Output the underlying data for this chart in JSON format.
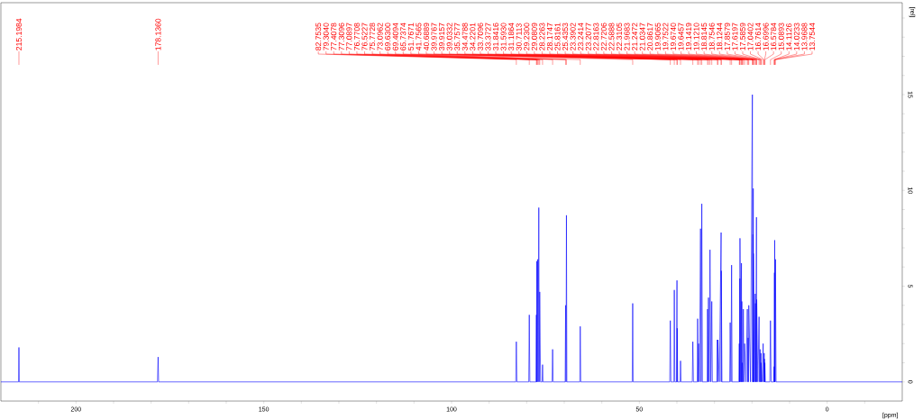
{
  "chart_data": {
    "type": "line",
    "xlabel": "[ppm]",
    "ylabel": "[rel]",
    "xlim": [
      220,
      -20
    ],
    "ylim": [
      -1,
      19.8
    ],
    "xticks": [
      {
        "value": 210,
        "label": null
      },
      200,
      {
        "value": 190,
        "label": null
      },
      {
        "value": 180,
        "label": null
      },
      {
        "value": 170,
        "label": null
      },
      {
        "value": 160,
        "label": null
      },
      150,
      {
        "value": 140,
        "label": null
      },
      {
        "value": 130,
        "label": null
      },
      {
        "value": 120,
        "label": null
      },
      {
        "value": 110,
        "label": null
      },
      100,
      {
        "value": 90,
        "label": null
      },
      {
        "value": 80,
        "label": null
      },
      {
        "value": 70,
        "label": null
      },
      {
        "value": 60,
        "label": null
      },
      50,
      {
        "value": 40,
        "label": null
      },
      {
        "value": 30,
        "label": null
      },
      {
        "value": 20,
        "label": null
      },
      {
        "value": 10,
        "label": null
      },
      0,
      {
        "value": -10,
        "label": null
      }
    ],
    "yticks": [
      0,
      {
        "value": 1,
        "label": null
      },
      {
        "value": 2,
        "label": null
      },
      {
        "value": 3,
        "label": null
      },
      {
        "value": 4,
        "label": null
      },
      5,
      {
        "value": 6,
        "label": null
      },
      {
        "value": 7,
        "label": null
      },
      {
        "value": 8,
        "label": null
      },
      {
        "value": 9,
        "label": null
      },
      10,
      {
        "value": 11,
        "label": null
      },
      {
        "value": 12,
        "label": null
      },
      {
        "value": 13,
        "label": null
      },
      {
        "value": 14,
        "label": null
      },
      15,
      {
        "value": 16,
        "label": null
      },
      {
        "value": 17,
        "label": null
      },
      {
        "value": 18,
        "label": null
      },
      {
        "value": 19,
        "label": null
      }
    ],
    "x": [
      220,
      215.3,
      215.1984,
      215.1,
      178.3,
      178.136,
      178.0,
      82.9,
      82.7535,
      82.6,
      79.45,
      79.304,
      79.15,
      77.5,
      77.4078,
      77.36,
      77.3096,
      77.2,
      77.0897,
      76.93,
      76.7708,
      76.65,
      76.5227,
      76.3,
      75.9,
      75.7728,
      75.65,
      73.25,
      73.0962,
      72.95,
      69.75,
      69.63,
      69.52,
      69.4094,
      69.3,
      65.85,
      65.7374,
      65.6,
      51.9,
      51.7671,
      51.65,
      41.9,
      41.7565,
      41.6,
      40.8,
      40.6889,
      40.55,
      40.1,
      39.9767,
      39.95,
      39.9157,
      39.8,
      39.15,
      39.0332,
      38.9,
      35.9,
      35.7577,
      35.6,
      34.6,
      34.4788,
      34.35,
      34.2201,
      34.0,
      33.7096,
      33.54,
      33.3727,
      33.2,
      31.95,
      31.8416,
      31.72,
      31.593,
      31.39,
      31.1864,
      30.95,
      30.7113,
      30.55,
      29.35,
      29.23,
      29.16,
      29.0809,
      28.7,
      28.2263,
      28.2,
      28.1747,
      28.0,
      25.95,
      25.8161,
      25.6,
      25.4353,
      25.3,
      23.5,
      23.3902,
      23.32,
      23.2414,
      23.225,
      23.2077,
      23.0,
      22.8163,
      22.77,
      22.7206,
      22.65,
      22.5888,
      22.45,
      22.3105,
      22.14,
      21.9683,
      21.6,
      21.2472,
      21.14,
      21.0347,
      20.95,
      20.8617,
      20.4,
      19.9065,
      19.83,
      19.7522,
      19.71,
      19.674,
      19.66,
      19.6457,
      19.4,
      19.1419,
      19.13,
      19.121,
      18.97,
      18.8145,
      18.78,
      18.7546,
      18.44,
      18.1244,
      17.99,
      17.8579,
      17.74,
      17.6197,
      17.6,
      17.5859,
      17.3,
      17.0402,
      16.9,
      16.7614,
      16.73,
      16.6996,
      16.64,
      16.5784,
      16.45,
      15.25,
      15.0893,
      14.9,
      14.25,
      14.1126,
      14.07,
      14.0233,
      13.99,
      13.9688,
      13.86,
      13.7544,
      13.6,
      -20
    ],
    "series": [
      {
        "color": "#0000ff",
        "values": [
          0,
          0,
          1.8,
          0,
          0,
          1.3,
          0,
          0,
          2.1,
          0,
          0,
          3.5,
          0,
          0,
          3.5,
          0,
          6.3,
          0,
          6.4,
          0,
          9.1,
          0,
          4.7,
          0,
          0,
          0.9,
          0,
          0,
          1.7,
          0,
          0,
          4.0,
          0,
          8.7,
          0,
          0,
          2.9,
          0,
          0,
          4.1,
          0,
          0,
          3.2,
          0,
          0,
          4.8,
          0,
          0,
          5.3,
          0,
          2.8,
          0,
          0,
          1.1,
          0,
          0,
          2.1,
          0,
          0,
          3.3,
          0,
          2.0,
          0,
          8.0,
          0,
          9.3,
          0,
          0,
          3.8,
          0,
          4.4,
          0,
          6.9,
          0,
          4.2,
          0,
          0,
          2.2,
          0,
          2.2,
          0,
          7.8,
          0,
          5.8,
          0,
          0,
          3.1,
          0,
          6.1,
          0,
          0,
          2.0,
          0,
          5.4,
          0,
          7.5,
          0,
          6.2,
          0,
          4.2,
          0,
          1.0,
          0,
          3.8,
          0,
          2.0,
          0,
          3.8,
          0,
          2.3,
          0,
          4.0,
          0,
          15.0,
          0,
          7.7,
          0,
          10.1,
          0,
          6.7,
          0,
          4.6,
          0,
          4.1,
          0,
          8.6,
          0,
          4.3,
          0,
          3.4,
          0,
          1.7,
          0,
          1.5,
          0,
          1.0,
          0,
          2.0,
          0,
          1.5,
          0,
          1.2,
          0,
          1.0,
          0,
          0,
          3.2,
          0,
          0,
          0.8,
          0,
          5.7,
          0,
          7.4,
          0,
          6.4,
          0,
          0
        ]
      }
    ],
    "annotations": [
      {
        "text": "215.1984",
        "x": 215.1984
      },
      {
        "text": "178.1360",
        "x": 178.136
      },
      {
        "text": "82.7535",
        "x": 82.7535
      },
      {
        "text": "79.3040",
        "x": 79.304
      },
      {
        "text": "77.4078",
        "x": 77.4078
      },
      {
        "text": "77.3096",
        "x": 77.3096
      },
      {
        "text": "77.0897",
        "x": 77.0897
      },
      {
        "text": "76.7708",
        "x": 76.7708
      },
      {
        "text": "76.5227",
        "x": 76.5227
      },
      {
        "text": "75.7728",
        "x": 75.7728
      },
      {
        "text": "73.0962",
        "x": 73.0962
      },
      {
        "text": "69.6300",
        "x": 69.63
      },
      {
        "text": "69.4094",
        "x": 69.4094
      },
      {
        "text": "65.7374",
        "x": 65.7374
      },
      {
        "text": "51.7671",
        "x": 51.7671
      },
      {
        "text": "41.7565",
        "x": 41.7565
      },
      {
        "text": "40.6889",
        "x": 40.6889
      },
      {
        "text": "39.9767",
        "x": 39.9767
      },
      {
        "text": "39.9157",
        "x": 39.9157
      },
      {
        "text": "39.0332",
        "x": 39.0332
      },
      {
        "text": "35.7577",
        "x": 35.7577
      },
      {
        "text": "34.4788",
        "x": 34.4788
      },
      {
        "text": "34.2201",
        "x": 34.2201
      },
      {
        "text": "33.7096",
        "x": 33.7096
      },
      {
        "text": "33.3727",
        "x": 33.3727
      },
      {
        "text": "31.8416",
        "x": 31.8416
      },
      {
        "text": "31.5930",
        "x": 31.593
      },
      {
        "text": "31.1864",
        "x": 31.1864
      },
      {
        "text": "30.7113",
        "x": 30.7113
      },
      {
        "text": "29.2300",
        "x": 29.23
      },
      {
        "text": "29.0809",
        "x": 29.0809
      },
      {
        "text": "28.2263",
        "x": 28.2263
      },
      {
        "text": "28.1747",
        "x": 28.1747
      },
      {
        "text": "25.8161",
        "x": 25.8161
      },
      {
        "text": "25.4353",
        "x": 25.4353
      },
      {
        "text": "23.3902",
        "x": 23.3902
      },
      {
        "text": "23.2414",
        "x": 23.2414
      },
      {
        "text": "23.2077",
        "x": 23.2077
      },
      {
        "text": "22.8163",
        "x": 22.8163
      },
      {
        "text": "22.7206",
        "x": 22.7206
      },
      {
        "text": "22.5888",
        "x": 22.5888
      },
      {
        "text": "22.3105",
        "x": 22.3105
      },
      {
        "text": "21.9683",
        "x": 21.9683
      },
      {
        "text": "21.2472",
        "x": 21.2472
      },
      {
        "text": "21.0347",
        "x": 21.0347
      },
      {
        "text": "20.8617",
        "x": 20.8617
      },
      {
        "text": "19.9065",
        "x": 19.9065
      },
      {
        "text": "19.7522",
        "x": 19.7522
      },
      {
        "text": "19.6740",
        "x": 19.674
      },
      {
        "text": "19.6457",
        "x": 19.6457
      },
      {
        "text": "19.1419",
        "x": 19.1419
      },
      {
        "text": "19.1210",
        "x": 19.121
      },
      {
        "text": "18.8145",
        "x": 18.8145
      },
      {
        "text": "18.7546",
        "x": 18.7546
      },
      {
        "text": "18.1244",
        "x": 18.1244
      },
      {
        "text": "17.8579",
        "x": 17.8579
      },
      {
        "text": "17.6197",
        "x": 17.6197
      },
      {
        "text": "17.5859",
        "x": 17.5859
      },
      {
        "text": "17.0402",
        "x": 17.0402
      },
      {
        "text": "16.7614",
        "x": 16.7614
      },
      {
        "text": "16.6996",
        "x": 16.6996
      },
      {
        "text": "16.5784",
        "x": 16.5784
      },
      {
        "text": "15.0893",
        "x": 15.0893
      },
      {
        "text": "14.1126",
        "x": 14.1126
      },
      {
        "text": "14.0233",
        "x": 14.0233
      },
      {
        "text": "13.9688",
        "x": 13.9688
      },
      {
        "text": "13.7544",
        "x": 13.7544
      }
    ]
  }
}
